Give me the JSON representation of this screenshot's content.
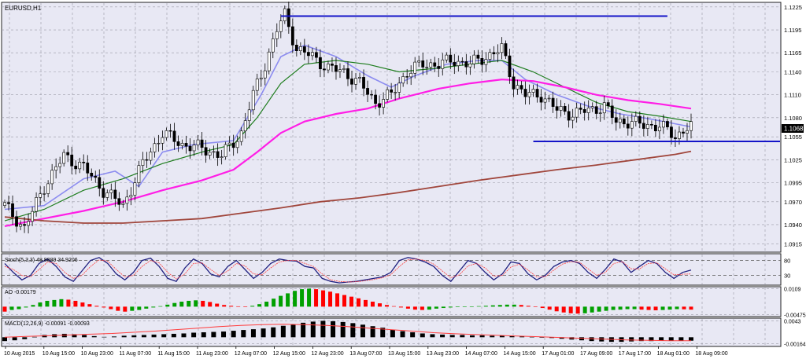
{
  "symbol_label": "EURUSD,H1",
  "price_tag": "1.1068",
  "colors": {
    "background": "#e8e8f4",
    "grid": "#9a9aa6",
    "bull_body": "#ffffff",
    "bear_body": "#000000",
    "ma_fast": "#8c8cf0",
    "ma_mid": "#1e7d1e",
    "ma_slow": "#ff1ee6",
    "ma_long": "#a0463c",
    "hline": "#1414c8",
    "ao_up": "#00a000",
    "ao_down": "#ff0000",
    "macd_line": "#ff3c3c",
    "stoch_main": "#202080",
    "stoch_signal": "#ff3c3c"
  },
  "chart_data": [
    {
      "type": "candlestick",
      "title": "EURUSD,H1",
      "y_ticks": [
        "1.1225",
        "1.1195",
        "1.1165",
        "1.1140",
        "1.1110",
        "1.1080",
        "1.1055",
        "1.1025",
        "1.0995",
        "1.0970",
        "1.0940",
        "1.0915"
      ],
      "ylim": [
        1.0905,
        1.123
      ],
      "x_ticks": [
        "10 Aug 2015",
        "10 Aug 15:00",
        "10 Aug 23:00",
        "11 Aug 07:00",
        "11 Aug 15:00",
        "11 Aug 23:00",
        "12 Aug 07:00",
        "12 Aug 15:00",
        "12 Aug 23:00",
        "13 Aug 07:00",
        "13 Aug 15:00",
        "13 Aug 23:00",
        "14 Aug 07:00",
        "14 Aug 15:00",
        "17 Aug 01:00",
        "17 Aug 09:00",
        "17 Aug 17:00",
        "18 Aug 01:00",
        "18 Aug 09:00"
      ],
      "key_points": [
        {
          "x": 0,
          "close": 1.0965
        },
        {
          "x": 5,
          "close": 1.0935
        },
        {
          "x": 10,
          "close": 1.099
        },
        {
          "x": 15,
          "close": 1.103
        },
        {
          "x": 20,
          "close": 1.1015
        },
        {
          "x": 25,
          "close": 1.0985
        },
        {
          "x": 30,
          "close": 1.0965
        },
        {
          "x": 35,
          "close": 1.102
        },
        {
          "x": 40,
          "close": 1.106
        },
        {
          "x": 45,
          "close": 1.1045
        },
        {
          "x": 50,
          "close": 1.104
        },
        {
          "x": 55,
          "close": 1.103
        },
        {
          "x": 60,
          "close": 1.106
        },
        {
          "x": 63,
          "close": 1.111
        },
        {
          "x": 66,
          "close": 1.115
        },
        {
          "x": 69,
          "close": 1.1195
        },
        {
          "x": 71,
          "close": 1.1215
        },
        {
          "x": 74,
          "close": 1.117
        },
        {
          "x": 78,
          "close": 1.116
        },
        {
          "x": 82,
          "close": 1.1145
        },
        {
          "x": 86,
          "close": 1.114
        },
        {
          "x": 90,
          "close": 1.1125
        },
        {
          "x": 94,
          "close": 1.11
        },
        {
          "x": 98,
          "close": 1.111
        },
        {
          "x": 102,
          "close": 1.114
        },
        {
          "x": 106,
          "close": 1.115
        },
        {
          "x": 110,
          "close": 1.115
        },
        {
          "x": 114,
          "close": 1.1155
        },
        {
          "x": 118,
          "close": 1.115
        },
        {
          "x": 122,
          "close": 1.116
        },
        {
          "x": 126,
          "close": 1.117
        },
        {
          "x": 129,
          "close": 1.1125
        },
        {
          "x": 132,
          "close": 1.111
        },
        {
          "x": 136,
          "close": 1.111
        },
        {
          "x": 140,
          "close": 1.109
        },
        {
          "x": 144,
          "close": 1.1085
        },
        {
          "x": 148,
          "close": 1.109
        },
        {
          "x": 152,
          "close": 1.1095
        },
        {
          "x": 155,
          "close": 1.1075
        },
        {
          "x": 158,
          "close": 1.1075
        },
        {
          "x": 162,
          "close": 1.107
        },
        {
          "x": 166,
          "close": 1.107
        },
        {
          "x": 170,
          "close": 1.1055
        },
        {
          "x": 173,
          "close": 1.1068
        }
      ],
      "hlines": [
        {
          "price": 1.1213,
          "from_x": 70,
          "to_x": 168
        },
        {
          "price": 1.1049,
          "from_x": 134,
          "to_x": 199
        }
      ],
      "series": [
        {
          "style": "ma_fast",
          "points": [
            [
              0,
              1.096
            ],
            [
              10,
              1.0965
            ],
            [
              20,
              1.1
            ],
            [
              28,
              1.101
            ],
            [
              34,
              1.099
            ],
            [
              40,
              1.1035
            ],
            [
              48,
              1.1045
            ],
            [
              58,
              1.105
            ],
            [
              65,
              1.111
            ],
            [
              70,
              1.116
            ],
            [
              76,
              1.1175
            ],
            [
              84,
              1.116
            ],
            [
              92,
              1.1135
            ],
            [
              98,
              1.112
            ],
            [
              104,
              1.1135
            ],
            [
              112,
              1.115
            ],
            [
              120,
              1.1155
            ],
            [
              126,
              1.1155
            ],
            [
              132,
              1.113
            ],
            [
              140,
              1.111
            ],
            [
              148,
              1.1095
            ],
            [
              156,
              1.1085
            ],
            [
              164,
              1.1078
            ],
            [
              170,
              1.1072
            ],
            [
              174,
              1.1068
            ]
          ]
        },
        {
          "style": "ma_mid",
          "points": [
            [
              0,
              1.0945
            ],
            [
              10,
              1.096
            ],
            [
              20,
              1.0985
            ],
            [
              30,
              1.1
            ],
            [
              40,
              1.102
            ],
            [
              50,
              1.1035
            ],
            [
              58,
              1.1045
            ],
            [
              64,
              1.108
            ],
            [
              70,
              1.1125
            ],
            [
              76,
              1.115
            ],
            [
              84,
              1.1155
            ],
            [
              92,
              1.115
            ],
            [
              100,
              1.114
            ],
            [
              110,
              1.1145
            ],
            [
              118,
              1.115
            ],
            [
              126,
              1.1155
            ],
            [
              134,
              1.114
            ],
            [
              142,
              1.112
            ],
            [
              150,
              1.11
            ],
            [
              158,
              1.1088
            ],
            [
              166,
              1.1082
            ],
            [
              174,
              1.1075
            ]
          ]
        },
        {
          "style": "ma_slow",
          "points": [
            [
              0,
              1.0938
            ],
            [
              10,
              1.0948
            ],
            [
              20,
              1.0958
            ],
            [
              30,
              1.097
            ],
            [
              40,
              1.0985
            ],
            [
              50,
              1.0998
            ],
            [
              58,
              1.1012
            ],
            [
              64,
              1.1035
            ],
            [
              70,
              1.106
            ],
            [
              76,
              1.1075
            ],
            [
              84,
              1.1085
            ],
            [
              92,
              1.1092
            ],
            [
              100,
              1.1105
            ],
            [
              110,
              1.1118
            ],
            [
              118,
              1.1125
            ],
            [
              126,
              1.113
            ],
            [
              134,
              1.1128
            ],
            [
              142,
              1.112
            ],
            [
              150,
              1.111
            ],
            [
              158,
              1.1103
            ],
            [
              166,
              1.1098
            ],
            [
              174,
              1.1092
            ]
          ]
        },
        {
          "style": "ma_long",
          "points": [
            [
              0,
              1.095
            ],
            [
              10,
              1.0945
            ],
            [
              20,
              1.0942
            ],
            [
              30,
              1.0942
            ],
            [
              40,
              1.0945
            ],
            [
              50,
              1.0948
            ],
            [
              60,
              1.0955
            ],
            [
              70,
              1.0962
            ],
            [
              80,
              1.097
            ],
            [
              90,
              1.0975
            ],
            [
              100,
              1.0982
            ],
            [
              110,
              1.099
            ],
            [
              120,
              1.0998
            ],
            [
              130,
              1.1005
            ],
            [
              140,
              1.1012
            ],
            [
              150,
              1.1018
            ],
            [
              160,
              1.1025
            ],
            [
              170,
              1.1032
            ],
            [
              174,
              1.1036
            ]
          ]
        }
      ]
    },
    {
      "type": "line",
      "title": "Stoch(5,3,3) 48.8889 34.9206",
      "y_ticks": [
        "80",
        "30"
      ],
      "ylim": [
        0,
        100
      ],
      "series": [
        {
          "style": "stoch_main",
          "values": [
            70,
            40,
            15,
            30,
            70,
            85,
            60,
            25,
            10,
            45,
            80,
            90,
            70,
            35,
            15,
            40,
            80,
            88,
            60,
            20,
            10,
            55,
            85,
            70,
            35,
            25,
            60,
            80,
            50,
            20,
            40,
            70,
            85,
            80,
            78,
            60,
            55,
            20,
            10,
            5,
            8,
            10,
            15,
            20,
            25,
            40,
            80,
            90,
            85,
            75,
            60,
            30,
            10,
            45,
            80,
            70,
            40,
            15,
            35,
            75,
            70,
            35,
            15,
            30,
            60,
            75,
            80,
            70,
            40,
            20,
            50,
            85,
            75,
            40,
            60,
            80,
            70,
            40,
            20,
            40,
            48
          ]
        },
        {
          "style": "stoch_signal",
          "values": [
            60,
            50,
            30,
            25,
            50,
            75,
            70,
            40,
            20,
            30,
            60,
            82,
            78,
            50,
            25,
            30,
            60,
            80,
            72,
            40,
            18,
            35,
            70,
            72,
            50,
            30,
            45,
            70,
            62,
            35,
            32,
            55,
            75,
            80,
            80,
            70,
            60,
            35,
            15,
            10,
            8,
            9,
            12,
            16,
            22,
            32,
            60,
            82,
            85,
            80,
            68,
            45,
            22,
            32,
            62,
            70,
            55,
            28,
            30,
            58,
            68,
            48,
            25,
            25,
            48,
            68,
            76,
            74,
            52,
            30,
            40,
            70,
            76,
            52,
            52,
            70,
            72,
            52,
            32,
            34,
            35
          ]
        }
      ]
    },
    {
      "type": "bar",
      "title": "AO -0.00179",
      "y_ticks": [
        "0.0109",
        "-0.00475"
      ],
      "ylim": [
        -0.0055,
        0.0115
      ],
      "values": [
        -0.003,
        -0.002,
        -0.0015,
        -0.0005,
        0.001,
        0.0025,
        0.0035,
        0.004,
        0.0045,
        0.0042,
        0.0035,
        0.0025,
        0.0015,
        0.0005,
        -0.0005,
        -0.0015,
        -0.0025,
        -0.003,
        -0.0025,
        -0.002,
        -0.0012,
        -0.0005,
        0.0003,
        0.0012,
        0.0022,
        0.003,
        0.0035,
        0.0038,
        0.0035,
        0.0028,
        0.0018,
        0.001,
        0.0005,
        0.0002,
        -0.0002,
        0.0005,
        0.0015,
        0.003,
        0.0048,
        0.0065,
        0.008,
        0.0095,
        0.0105,
        0.0108,
        0.0105,
        0.0098,
        0.009,
        0.008,
        0.007,
        0.006,
        0.005,
        0.004,
        0.003,
        0.002,
        0.001,
        0.0003,
        -0.0005,
        -0.0012,
        -0.0018,
        -0.002,
        -0.0018,
        -0.0012,
        -0.0008,
        -0.0005,
        -0.0003,
        -0.0002,
        0.0001,
        0.0003,
        0.0005,
        0.0008,
        0.001,
        0.0012,
        0.0012,
        0.001,
        0.0005,
        0.0,
        -0.0008,
        -0.0018,
        -0.0028,
        -0.0035,
        -0.004,
        -0.0042,
        -0.004,
        -0.0035,
        -0.003,
        -0.0025,
        -0.002,
        -0.0018,
        -0.0015,
        -0.0015,
        -0.0018,
        -0.002,
        -0.0022,
        -0.002,
        -0.0018,
        -0.0015,
        -0.0016,
        -0.0018
      ]
    },
    {
      "type": "bar",
      "title": "MACD(12,26,9) -0.00091 -0.00093",
      "y_ticks": [
        "0.0043",
        "-0.00164"
      ],
      "ylim": [
        -0.0022,
        0.0048
      ],
      "values": [
        -0.001,
        -0.0008,
        -0.0005,
        0.0001,
        0.0006,
        0.0008,
        0.0009,
        0.0008,
        0.0006,
        0.0003,
        0.0001,
        0.0002,
        0.0004,
        0.0005,
        0.0006,
        0.0007,
        0.0008,
        0.0009,
        0.001,
        0.0012,
        0.0013,
        0.0014,
        0.0015,
        0.0017,
        0.0019,
        0.0021,
        0.0023,
        0.0026,
        0.003,
        0.0034,
        0.0038,
        0.0041,
        0.0043,
        0.0042,
        0.004,
        0.0037,
        0.0033,
        0.0029,
        0.0025,
        0.002,
        0.0016,
        0.0013,
        0.001,
        0.0008,
        0.0007,
        0.0006,
        0.0006,
        0.0005,
        0.0005,
        0.0004,
        0.0004,
        0.0003,
        0.0002,
        0.0001,
        0.0,
        -0.0002,
        -0.0004,
        -0.0006,
        -0.0008,
        -0.001,
        -0.0011,
        -0.0012,
        -0.0012,
        -0.0011,
        -0.001,
        -0.001,
        -0.0009,
        -0.0009,
        -0.0009,
        -0.0009
      ],
      "signal": [
        0.0,
        0.0002,
        0.0004,
        0.0006,
        0.0008,
        0.001,
        0.0013,
        0.0016,
        0.002,
        0.0024,
        0.0028,
        0.0031,
        0.0033,
        0.0034,
        0.0033,
        0.0031,
        0.0028,
        0.0024,
        0.002,
        0.0016,
        0.0012,
        0.0009,
        0.0007,
        0.0005,
        0.0003,
        0.0001,
        -0.0001,
        -0.0003,
        -0.0005,
        -0.0007,
        -0.0008,
        -0.0009,
        -0.00093
      ]
    }
  ]
}
